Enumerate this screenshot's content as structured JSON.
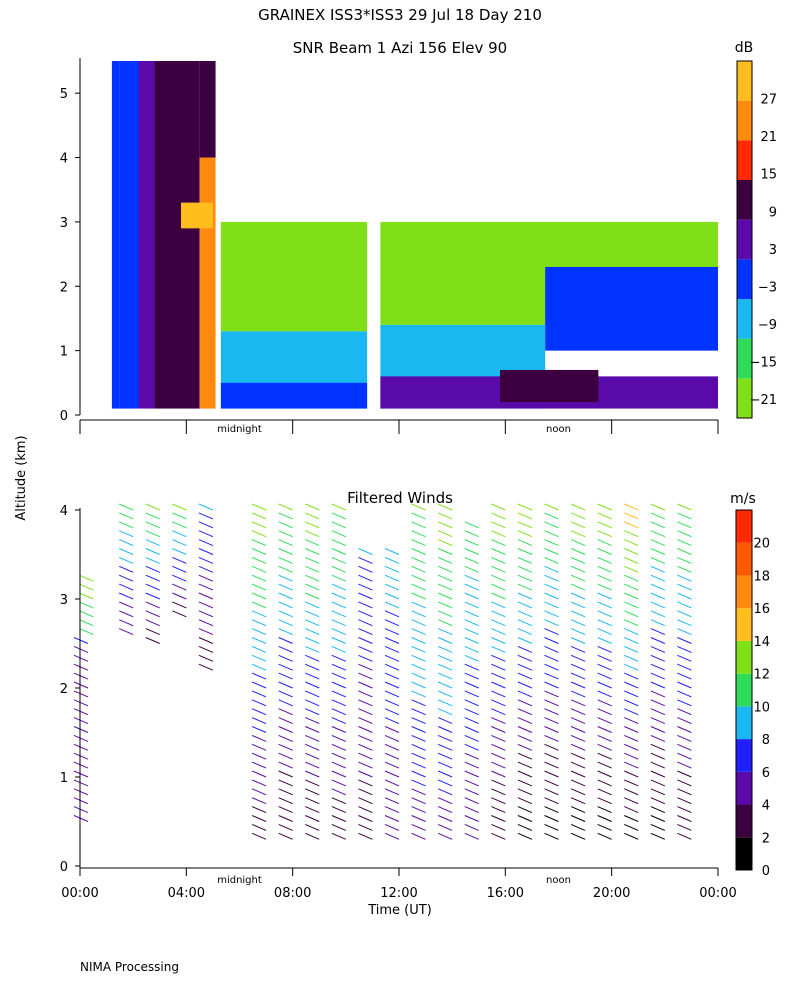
{
  "header": {
    "title": "GRAINEX ISS3*ISS3  29 Jul 18 Day 210",
    "footer": "NIMA Processing"
  },
  "shared_axis": {
    "ylabel": "Altitude (km)",
    "xlabel": "Time (UT)",
    "x_ticks": [
      "00:00",
      "04:00",
      "08:00",
      "12:00",
      "16:00",
      "20:00",
      "00:00"
    ],
    "x_range_hours": [
      0,
      24
    ],
    "markers": [
      {
        "label": "midnight",
        "hour": 6.0
      },
      {
        "label": "noon",
        "hour": 18.0
      }
    ]
  },
  "chart_data": [
    {
      "type": "heatmap",
      "title": "SNR Beam 1 Azi 156 Elev 90",
      "y_ticks": [
        "0",
        "1",
        "2",
        "3",
        "4",
        "5"
      ],
      "ylim": [
        0,
        5.5
      ],
      "colorbar": {
        "unit": "dB",
        "range": [
          -24,
          33
        ],
        "labels": [
          "27",
          "21",
          "15",
          "9",
          "3",
          "−3",
          "−9",
          "−15",
          "−21"
        ],
        "colors": [
          "#7fe018",
          "#2fdc5a",
          "#1ab8f0",
          "#0033ff",
          "#5a0aa8",
          "#3c0040",
          "#ff2a00",
          "#ff8a10",
          "#ffbe1e"
        ]
      },
      "snr_cells": [
        {
          "t0": 1.2,
          "t1": 1.5,
          "z0": 0.1,
          "z1": 5.5,
          "db": 1
        },
        {
          "t0": 1.5,
          "t1": 2.2,
          "z0": 0.1,
          "z1": 5.5,
          "db": -5
        },
        {
          "t0": 2.2,
          "t1": 2.8,
          "z0": 0.1,
          "z1": 5.5,
          "db": 2
        },
        {
          "t0": 2.8,
          "t1": 4.5,
          "z0": 0.1,
          "z1": 5.5,
          "db": 11
        },
        {
          "t0": 4.5,
          "t1": 5.1,
          "z0": 0.1,
          "z1": 4.0,
          "db": 24
        },
        {
          "t0": 4.5,
          "t1": 5.1,
          "z0": 4.0,
          "z1": 5.5,
          "db": 12
        },
        {
          "t0": 3.8,
          "t1": 5.0,
          "z0": 2.9,
          "z1": 3.3,
          "db": 29
        },
        {
          "t0": 5.3,
          "t1": 10.8,
          "z0": 1.3,
          "z1": 3.0,
          "db": -18
        },
        {
          "t0": 5.3,
          "t1": 10.8,
          "z0": 0.1,
          "z1": 1.3,
          "db": -8
        },
        {
          "t0": 5.3,
          "t1": 10.8,
          "z0": 0.1,
          "z1": 0.5,
          "db": -2
        },
        {
          "t0": 11.3,
          "t1": 24.0,
          "z0": 1.4,
          "z1": 3.0,
          "db": -18
        },
        {
          "t0": 11.3,
          "t1": 17.5,
          "z0": 0.1,
          "z1": 1.4,
          "db": -10
        },
        {
          "t0": 17.5,
          "t1": 24.0,
          "z0": 1.0,
          "z1": 2.3,
          "db": -5
        },
        {
          "t0": 11.3,
          "t1": 24.0,
          "z0": 0.1,
          "z1": 0.6,
          "db": 3
        },
        {
          "t0": 15.8,
          "t1": 19.5,
          "z0": 0.2,
          "z1": 0.7,
          "db": 11
        }
      ]
    },
    {
      "type": "wind_barbs",
      "title": "Filtered Winds",
      "y_ticks": [
        "0",
        "1",
        "2",
        "3",
        "4"
      ],
      "ylim": [
        0,
        4
      ],
      "colorbar": {
        "unit": "m/s",
        "range": [
          0,
          22
        ],
        "labels": [
          "20",
          "18",
          "16",
          "14",
          "12",
          "10",
          "8",
          "6",
          "4",
          "2",
          "0"
        ],
        "colors": [
          "#000000",
          "#3c0040",
          "#5a0aa8",
          "#2020ff",
          "#1ab8f0",
          "#2fdc5a",
          "#7fe018",
          "#ffbe1e",
          "#ff8a10",
          "#ff5a00",
          "#ff2a00"
        ]
      },
      "wind_columns": [
        {
          "hour": 0.3,
          "z0": 0.5,
          "z1": 2.5,
          "speed_low": 4,
          "speed_high": 6
        },
        {
          "hour": 0.5,
          "z0": 2.6,
          "z1": 3.2,
          "speed_low": 10,
          "speed_high": 13
        },
        {
          "hour": 2.0,
          "z0": 2.6,
          "z1": 4.0,
          "speed_low": 4,
          "speed_high": 11
        },
        {
          "hour": 3.0,
          "z0": 2.5,
          "z1": 4.0,
          "speed_low": 3,
          "speed_high": 12
        },
        {
          "hour": 4.0,
          "z0": 2.8,
          "z1": 4.0,
          "speed_low": 3,
          "speed_high": 12
        },
        {
          "hour": 5.0,
          "z0": 2.2,
          "z1": 4.0,
          "speed_low": 3,
          "speed_high": 8
        },
        {
          "hour": 7.0,
          "z0": 0.3,
          "z1": 4.0,
          "speed_low": 3,
          "speed_high": 13
        },
        {
          "hour": 8.0,
          "z0": 0.3,
          "z1": 4.0,
          "speed_low": 2,
          "speed_high": 12
        },
        {
          "hour": 9.0,
          "z0": 0.3,
          "z1": 4.0,
          "speed_low": 2,
          "speed_high": 13
        },
        {
          "hour": 10.0,
          "z0": 0.3,
          "z1": 4.0,
          "speed_low": 3,
          "speed_high": 12
        },
        {
          "hour": 11.0,
          "z0": 0.3,
          "z1": 3.5,
          "speed_low": 3,
          "speed_high": 8
        },
        {
          "hour": 12.0,
          "z0": 0.3,
          "z1": 3.5,
          "speed_low": 4,
          "speed_high": 9
        },
        {
          "hour": 13.0,
          "z0": 0.3,
          "z1": 4.0,
          "speed_low": 5,
          "speed_high": 12
        },
        {
          "hour": 14.0,
          "z0": 0.3,
          "z1": 4.0,
          "speed_low": 5,
          "speed_high": 13
        },
        {
          "hour": 15.0,
          "z0": 0.3,
          "z1": 3.8,
          "speed_low": 4,
          "speed_high": 11
        },
        {
          "hour": 16.0,
          "z0": 0.3,
          "z1": 4.0,
          "speed_low": 2,
          "speed_high": 13
        },
        {
          "hour": 17.0,
          "z0": 0.3,
          "z1": 4.0,
          "speed_low": 1,
          "speed_high": 13
        },
        {
          "hour": 18.0,
          "z0": 0.3,
          "z1": 4.0,
          "speed_low": 1,
          "speed_high": 12
        },
        {
          "hour": 19.0,
          "z0": 0.3,
          "z1": 4.0,
          "speed_low": 1,
          "speed_high": 13
        },
        {
          "hour": 20.0,
          "z0": 0.3,
          "z1": 4.0,
          "speed_low": 1,
          "speed_high": 13
        },
        {
          "hour": 21.0,
          "z0": 0.3,
          "z1": 4.0,
          "speed_low": 1,
          "speed_high": 15
        },
        {
          "hour": 22.0,
          "z0": 0.3,
          "z1": 4.0,
          "speed_low": 1,
          "speed_high": 12
        },
        {
          "hour": 23.0,
          "z0": 0.3,
          "z1": 4.0,
          "speed_low": 2,
          "speed_high": 12
        }
      ]
    }
  ]
}
